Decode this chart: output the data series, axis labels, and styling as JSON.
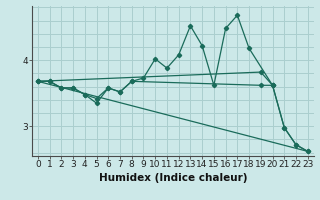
{
  "title": "",
  "xlabel": "Humidex (Indice chaleur)",
  "bg_color": "#cce8e8",
  "grid_color": "#aacece",
  "line_color": "#1a6b5a",
  "xlim": [
    -0.5,
    23.5
  ],
  "ylim": [
    2.55,
    4.82
  ],
  "yticks": [
    3,
    4
  ],
  "xticks": [
    0,
    1,
    2,
    3,
    4,
    5,
    6,
    7,
    8,
    9,
    10,
    11,
    12,
    13,
    14,
    15,
    16,
    17,
    18,
    19,
    20,
    21,
    22,
    23
  ],
  "line1_x": [
    0,
    1,
    2,
    3,
    4,
    5,
    6,
    7,
    8,
    9,
    10,
    11,
    12,
    13,
    14,
    15,
    16,
    17,
    18,
    20,
    21,
    22,
    23
  ],
  "line1_y": [
    3.68,
    3.68,
    3.58,
    3.58,
    3.48,
    3.42,
    3.58,
    3.52,
    3.68,
    3.73,
    4.02,
    3.88,
    4.08,
    4.52,
    4.22,
    3.62,
    4.48,
    4.68,
    4.18,
    3.62,
    2.98,
    2.72,
    2.62
  ],
  "line2_x": [
    0,
    1,
    2,
    3,
    4,
    5,
    6,
    7,
    8,
    19,
    20
  ],
  "line2_y": [
    3.68,
    3.68,
    3.58,
    3.58,
    3.48,
    3.35,
    3.58,
    3.52,
    3.68,
    3.62,
    3.62
  ],
  "line3_x": [
    0,
    23
  ],
  "line3_y": [
    3.68,
    2.62
  ],
  "line4_x": [
    0,
    19,
    20,
    21,
    22,
    23
  ],
  "line4_y": [
    3.68,
    3.82,
    3.62,
    2.98,
    2.72,
    2.62
  ],
  "tick_fontsize": 6.5,
  "label_fontsize": 7.5
}
